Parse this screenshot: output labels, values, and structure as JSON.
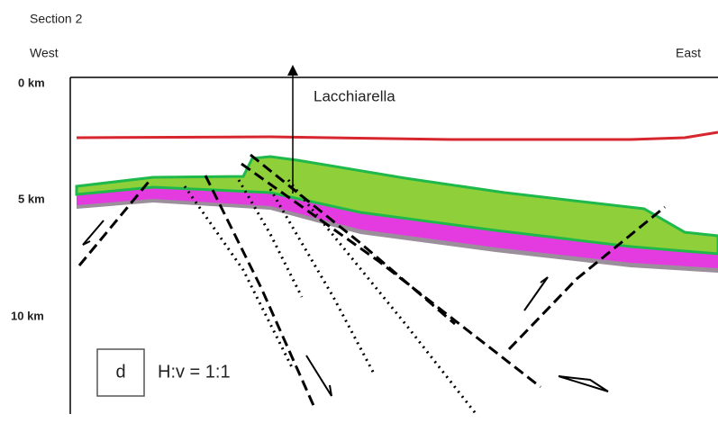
{
  "header": {
    "title": "Section 2"
  },
  "directions": {
    "left": "West",
    "right": "East"
  },
  "depth_labels": [
    "0 km",
    "5 km",
    "10 km"
  ],
  "location": {
    "label": "Lacchiarella"
  },
  "legend_box": {
    "panel": "d",
    "scale": "H:v = 1:1"
  }
}
